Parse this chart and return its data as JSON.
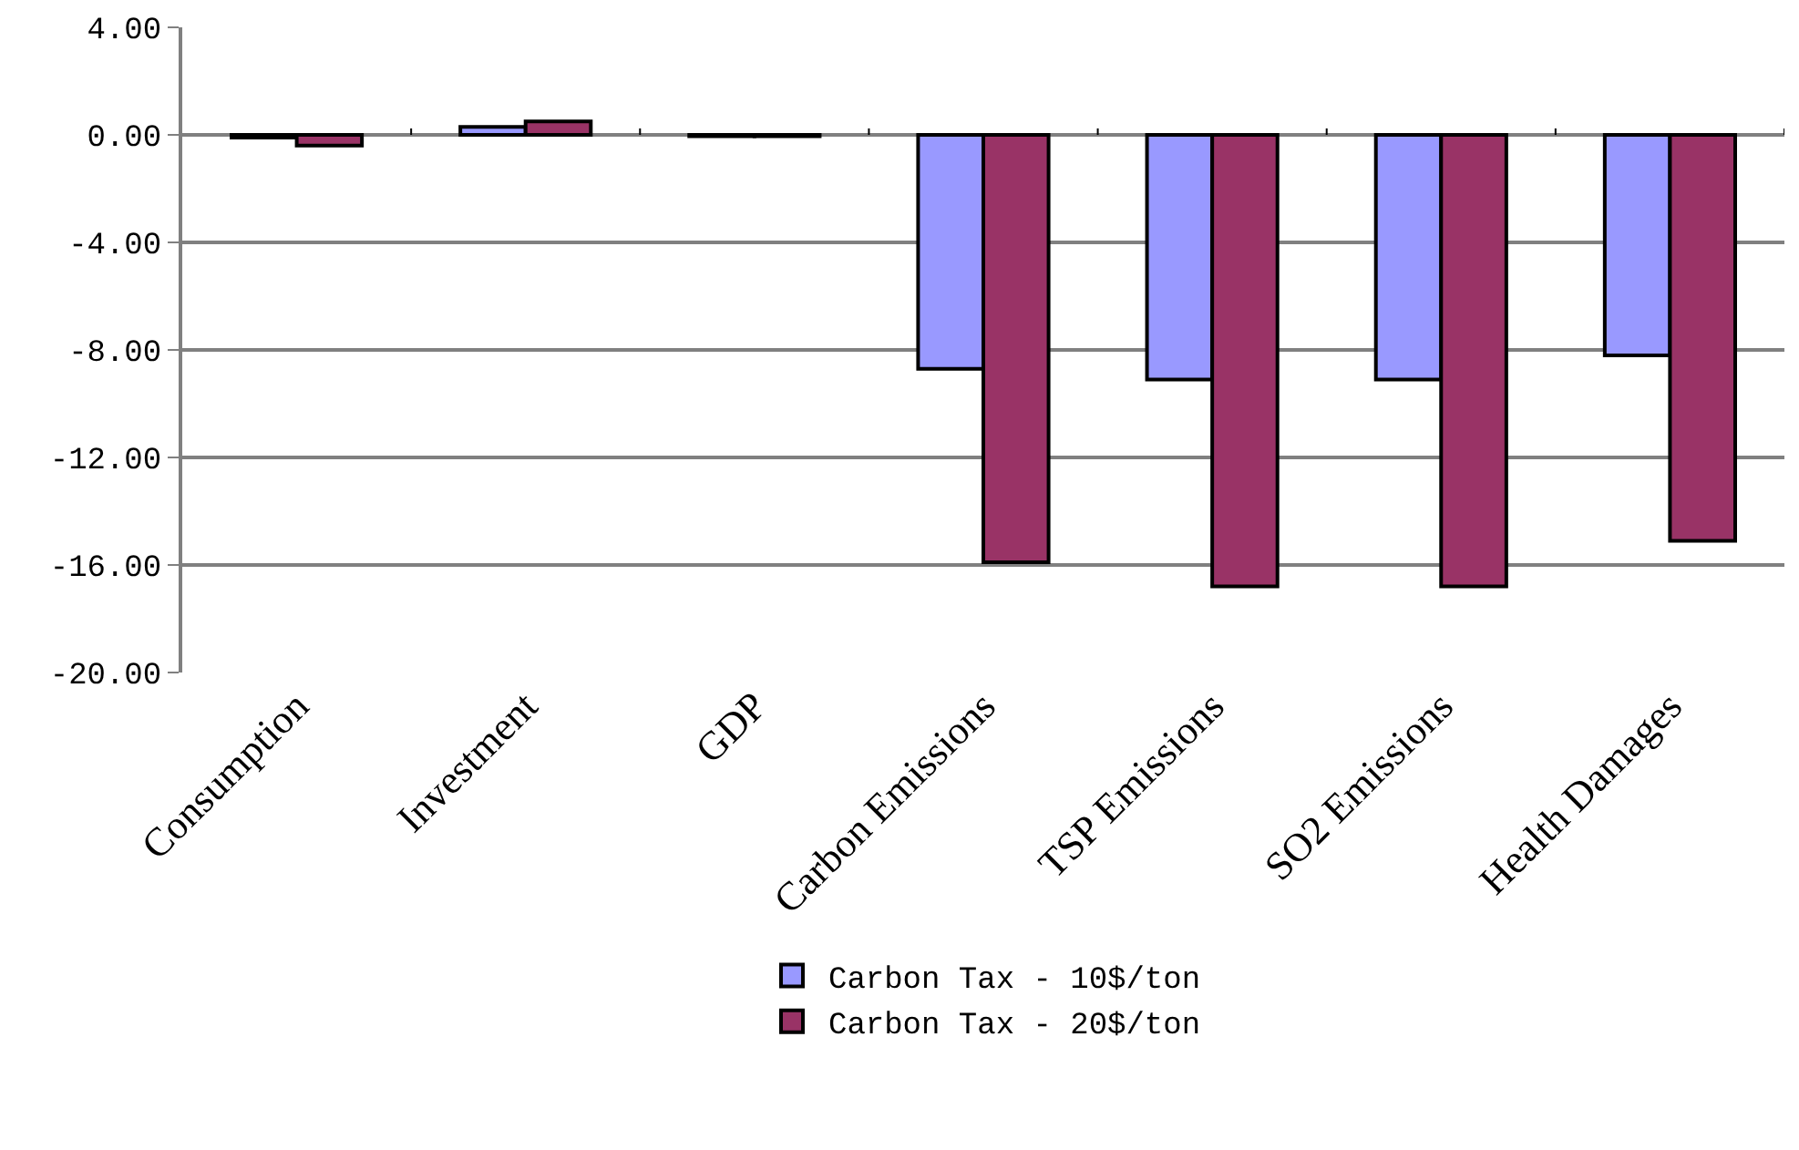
{
  "chart_data": {
    "type": "bar",
    "categories": [
      "Consumption",
      "Investment",
      "GDP",
      "Carbon Emissions",
      "TSP Emissions",
      "SO2 Emissions",
      "Health Damages"
    ],
    "series": [
      {
        "name": "Carbon Tax - 10$/ton",
        "color": "#9999ff",
        "values": [
          -0.1,
          0.3,
          -0.05,
          -8.7,
          -9.1,
          -9.1,
          -8.2
        ]
      },
      {
        "name": "Carbon Tax - 20$/ton",
        "color": "#993366",
        "values": [
          -0.4,
          0.5,
          -0.05,
          -15.9,
          -16.8,
          -16.8,
          -15.1
        ]
      }
    ],
    "ylim": [
      -20,
      4
    ],
    "yticks": [
      {
        "value": 4,
        "label": "4.00"
      },
      {
        "value": 0,
        "label": "0.00"
      },
      {
        "value": -4,
        "label": "-4.00"
      },
      {
        "value": -8,
        "label": "-8.00"
      },
      {
        "value": -12,
        "label": "-12.00"
      },
      {
        "value": -16,
        "label": "-16.00"
      },
      {
        "value": -20,
        "label": "-20.00"
      }
    ],
    "grid": "y",
    "legend": "bottom"
  }
}
